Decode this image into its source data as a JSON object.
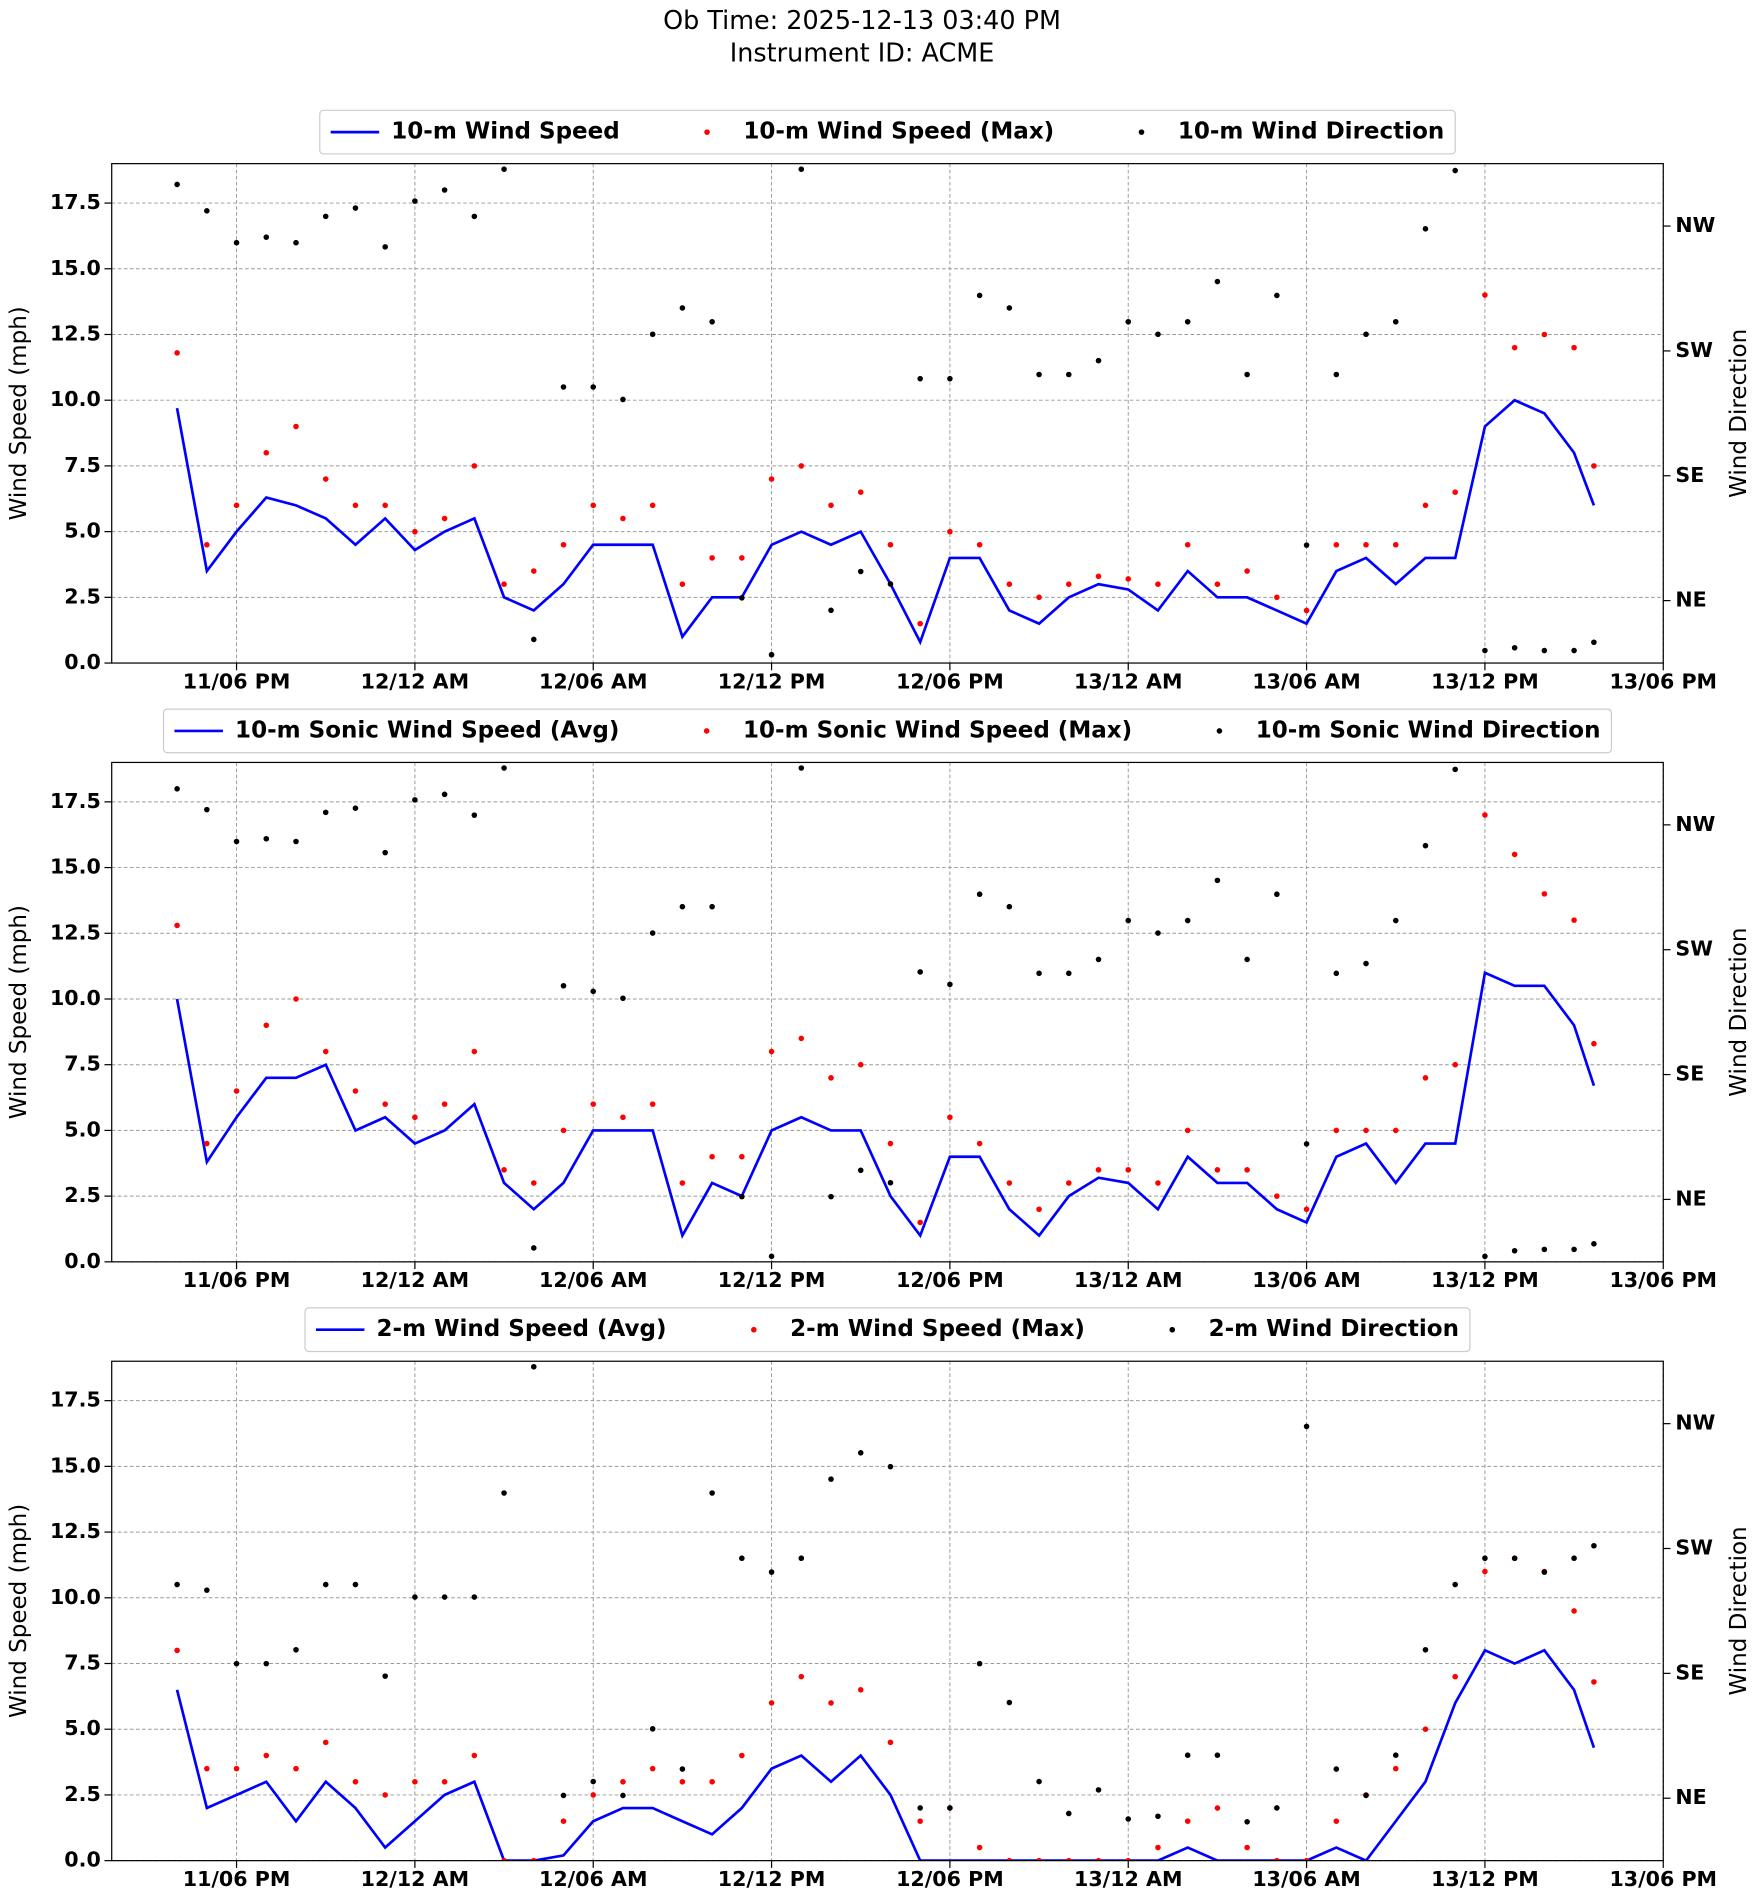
{
  "chart_data": [
    {
      "type": "line",
      "title": "Ob Time: 2025-12-13 03:40 PM",
      "subtitle": "Instrument ID: ACME",
      "y_label": "Wind Speed (mph)",
      "y2_label": "Wind Direction",
      "legend": "upper center",
      "grid": true,
      "x": [
        "11/04:00 PM",
        "11/05:00 PM",
        "11/06:00 PM",
        "11/07:00 PM",
        "11/08:00 PM",
        "11/09:00 PM",
        "11/10:00 PM",
        "11/11:00 PM",
        "12/12:00 AM",
        "12/01:00 AM",
        "12/02:00 AM",
        "12/03:00 AM",
        "12/04:00 AM",
        "12/05:00 AM",
        "12/06:00 AM",
        "12/07:00 AM",
        "12/08:00 AM",
        "12/09:00 AM",
        "12/10:00 AM",
        "12/11:00 AM",
        "12/12:00 PM",
        "12/01:00 PM",
        "12/02:00 PM",
        "12/03:00 PM",
        "12/04:00 PM",
        "12/05:00 PM",
        "12/06:00 PM",
        "12/07:00 PM",
        "12/08:00 PM",
        "12/09:00 PM",
        "12/10:00 PM",
        "12/11:00 PM",
        "13/12:00 AM",
        "13/01:00 AM",
        "13/02:00 AM",
        "13/03:00 AM",
        "13/04:00 AM",
        "13/05:00 AM",
        "13/06:00 AM",
        "13/07:00 AM",
        "13/08:00 AM",
        "13/09:00 AM",
        "13/10:00 AM",
        "13/11:00 AM",
        "13/12:00 PM",
        "13/01:00 PM",
        "13/02:00 PM",
        "13/03:00 PM",
        "13/03:40 PM"
      ],
      "xlim": [
        "11/01:48 PM",
        "13/06:00 PM"
      ],
      "xticks": [
        {
          "value": "11/06:00 PM",
          "label": "11/06 PM"
        },
        {
          "value": "12/12:00 AM",
          "label": "12/12 AM"
        },
        {
          "value": "12/06:00 AM",
          "label": "12/06 AM"
        },
        {
          "value": "12/12:00 PM",
          "label": "12/12 PM"
        },
        {
          "value": "12/06:00 PM",
          "label": "12/06 PM"
        },
        {
          "value": "13/12:00 AM",
          "label": "13/12 AM"
        },
        {
          "value": "13/06:00 AM",
          "label": "13/06 AM"
        },
        {
          "value": "13/12:00 PM",
          "label": "13/12 PM"
        },
        {
          "value": "13/06:00 PM",
          "label": "13/06 PM"
        }
      ],
      "ylim": [
        0,
        19
      ],
      "yticks": [
        {
          "value": 0,
          "label": "0.0"
        },
        2.5,
        {
          "value": 5,
          "label": "5.0"
        },
        7.5,
        {
          "value": 10,
          "label": "10.0"
        },
        12.5,
        {
          "value": 15,
          "label": "15.0"
        },
        17.5
      ],
      "y2lim": [
        0,
        360
      ],
      "y2ticks": [
        {
          "value": 45,
          "label": "NE"
        },
        {
          "value": 135,
          "label": "SE"
        },
        {
          "value": 225,
          "label": "SW"
        },
        {
          "value": 315,
          "label": "NW"
        }
      ],
      "series": [
        {
          "name": "10-m Wind Speed",
          "color": "#0000ff",
          "style": "line",
          "values": [
            9.7,
            3.5,
            5,
            6.3,
            6,
            5.5,
            4.5,
            5.5,
            4.3,
            5,
            5.5,
            2.5,
            2,
            3,
            4.5,
            4.5,
            4.5,
            1,
            2.5,
            2.5,
            4.5,
            5,
            4.5,
            5,
            3,
            0.8,
            4,
            4,
            2,
            1.5,
            2.5,
            3,
            2.8,
            2,
            3.5,
            2.5,
            2.5,
            2,
            1.5,
            3.5,
            4,
            3,
            4,
            4,
            9,
            10,
            9.5,
            8,
            6
          ]
        },
        {
          "name": "10-m Wind Speed (Max)",
          "color": "#ff0000",
          "style": "scatter",
          "values": [
            11.8,
            4.5,
            6,
            8,
            9,
            7,
            6,
            6,
            5,
            5.5,
            7.5,
            3,
            3.5,
            4.5,
            6,
            5.5,
            6,
            3,
            4,
            4,
            7,
            7.5,
            6,
            6.5,
            4.5,
            1.5,
            5,
            4.5,
            3,
            2.5,
            3,
            3.3,
            3.2,
            3,
            4.5,
            3,
            3.5,
            2.5,
            2,
            4.5,
            4.5,
            4.5,
            6,
            6.5,
            14,
            12,
            12.5,
            12,
            7.5
          ]
        },
        {
          "name": "10-m Wind Direction",
          "color": "#000000",
          "style": "scatter",
          "axis": "y2",
          "values": [
            345,
            326,
            303,
            307,
            303,
            322,
            328,
            300,
            333,
            341,
            322,
            356,
            17,
            199,
            199,
            190,
            237,
            256,
            246,
            47,
            6,
            356,
            38,
            66,
            57,
            205,
            205,
            265,
            256,
            208,
            208,
            218,
            246,
            237,
            246,
            275,
            208,
            265,
            85,
            208,
            237,
            246,
            313,
            355,
            9,
            11,
            9,
            9,
            15
          ]
        }
      ]
    },
    {
      "type": "line",
      "y_label": "Wind Speed (mph)",
      "y2_label": "Wind Direction",
      "legend": "upper center",
      "grid": true,
      "x": [
        "11/04:00 PM",
        "11/05:00 PM",
        "11/06:00 PM",
        "11/07:00 PM",
        "11/08:00 PM",
        "11/09:00 PM",
        "11/10:00 PM",
        "11/11:00 PM",
        "12/12:00 AM",
        "12/01:00 AM",
        "12/02:00 AM",
        "12/03:00 AM",
        "12/04:00 AM",
        "12/05:00 AM",
        "12/06:00 AM",
        "12/07:00 AM",
        "12/08:00 AM",
        "12/09:00 AM",
        "12/10:00 AM",
        "12/11:00 AM",
        "12/12:00 PM",
        "12/01:00 PM",
        "12/02:00 PM",
        "12/03:00 PM",
        "12/04:00 PM",
        "12/05:00 PM",
        "12/06:00 PM",
        "12/07:00 PM",
        "12/08:00 PM",
        "12/09:00 PM",
        "12/10:00 PM",
        "12/11:00 PM",
        "13/12:00 AM",
        "13/01:00 AM",
        "13/02:00 AM",
        "13/03:00 AM",
        "13/04:00 AM",
        "13/05:00 AM",
        "13/06:00 AM",
        "13/07:00 AM",
        "13/08:00 AM",
        "13/09:00 AM",
        "13/10:00 AM",
        "13/11:00 AM",
        "13/12:00 PM",
        "13/01:00 PM",
        "13/02:00 PM",
        "13/03:00 PM",
        "13/03:40 PM"
      ],
      "xlim": [
        "11/01:48 PM",
        "13/06:00 PM"
      ],
      "xticks": [
        {
          "value": "11/06:00 PM",
          "label": "11/06 PM"
        },
        {
          "value": "12/12:00 AM",
          "label": "12/12 AM"
        },
        {
          "value": "12/06:00 AM",
          "label": "12/06 AM"
        },
        {
          "value": "12/12:00 PM",
          "label": "12/12 PM"
        },
        {
          "value": "12/06:00 PM",
          "label": "12/06 PM"
        },
        {
          "value": "13/12:00 AM",
          "label": "13/12 AM"
        },
        {
          "value": "13/06:00 AM",
          "label": "13/06 AM"
        },
        {
          "value": "13/12:00 PM",
          "label": "13/12 PM"
        },
        {
          "value": "13/06:00 PM",
          "label": "13/06 PM"
        }
      ],
      "ylim": [
        0,
        19
      ],
      "yticks": [
        {
          "value": 0,
          "label": "0.0"
        },
        2.5,
        {
          "value": 5,
          "label": "5.0"
        },
        7.5,
        {
          "value": 10,
          "label": "10.0"
        },
        12.5,
        {
          "value": 15,
          "label": "15.0"
        },
        17.5
      ],
      "y2lim": [
        0,
        360
      ],
      "y2ticks": [
        {
          "value": 45,
          "label": "NE"
        },
        {
          "value": 135,
          "label": "SE"
        },
        {
          "value": 225,
          "label": "SW"
        },
        {
          "value": 315,
          "label": "NW"
        }
      ],
      "series": [
        {
          "name": "10-m Sonic Wind Speed (Avg)",
          "color": "#0000ff",
          "style": "line",
          "values": [
            10,
            3.8,
            5.5,
            7,
            7,
            7.5,
            5,
            5.5,
            4.5,
            5,
            6,
            3,
            2,
            3,
            5,
            5,
            5,
            1,
            3,
            2.5,
            5,
            5.5,
            5,
            5,
            2.5,
            1,
            4,
            4,
            2,
            1,
            2.5,
            3.2,
            3,
            2,
            4,
            3,
            3,
            2,
            1.5,
            4,
            4.5,
            3,
            4.5,
            4.5,
            11,
            10.5,
            10.5,
            9,
            6.7
          ]
        },
        {
          "name": "10-m Sonic Wind Speed (Max)",
          "color": "#ff0000",
          "style": "scatter",
          "values": [
            12.8,
            4.5,
            6.5,
            9,
            10,
            8,
            6.5,
            6,
            5.5,
            6,
            8,
            3.5,
            3,
            5,
            6,
            5.5,
            6,
            3,
            4,
            4,
            8,
            8.5,
            7,
            7.5,
            4.5,
            1.5,
            5.5,
            4.5,
            3,
            2,
            3,
            3.5,
            3.5,
            3,
            5,
            3.5,
            3.5,
            2.5,
            2,
            5,
            5,
            5,
            7,
            7.5,
            17,
            15.5,
            14,
            13,
            8.3
          ]
        },
        {
          "name": "10-m Sonic Wind Direction",
          "color": "#000000",
          "style": "scatter",
          "axis": "y2",
          "values": [
            341,
            326,
            303,
            305,
            303,
            324,
            327,
            295,
            333,
            337,
            322,
            356,
            10,
            199,
            195,
            190,
            237,
            256,
            256,
            47,
            4,
            356,
            47,
            66,
            57,
            209,
            200,
            265,
            256,
            208,
            208,
            218,
            246,
            237,
            246,
            275,
            218,
            265,
            85,
            208,
            215,
            246,
            300,
            355,
            4,
            8,
            9,
            9,
            13
          ]
        }
      ]
    },
    {
      "type": "line",
      "y_label": "Wind Speed (mph)",
      "y2_label": "Wind Direction",
      "legend": "upper center",
      "grid": true,
      "x": [
        "11/04:00 PM",
        "11/05:00 PM",
        "11/06:00 PM",
        "11/07:00 PM",
        "11/08:00 PM",
        "11/09:00 PM",
        "11/10:00 PM",
        "11/11:00 PM",
        "12/12:00 AM",
        "12/01:00 AM",
        "12/02:00 AM",
        "12/03:00 AM",
        "12/04:00 AM",
        "12/05:00 AM",
        "12/06:00 AM",
        "12/07:00 AM",
        "12/08:00 AM",
        "12/09:00 AM",
        "12/10:00 AM",
        "12/11:00 AM",
        "12/12:00 PM",
        "12/01:00 PM",
        "12/02:00 PM",
        "12/03:00 PM",
        "12/04:00 PM",
        "12/05:00 PM",
        "12/06:00 PM",
        "12/07:00 PM",
        "12/08:00 PM",
        "12/09:00 PM",
        "12/10:00 PM",
        "12/11:00 PM",
        "13/12:00 AM",
        "13/01:00 AM",
        "13/02:00 AM",
        "13/03:00 AM",
        "13/04:00 AM",
        "13/05:00 AM",
        "13/06:00 AM",
        "13/07:00 AM",
        "13/08:00 AM",
        "13/09:00 AM",
        "13/10:00 AM",
        "13/11:00 AM",
        "13/12:00 PM",
        "13/01:00 PM",
        "13/02:00 PM",
        "13/03:00 PM",
        "13/03:40 PM"
      ],
      "xlim": [
        "11/01:48 PM",
        "13/06:00 PM"
      ],
      "xticks": [
        {
          "value": "11/06:00 PM",
          "label": "11/06 PM"
        },
        {
          "value": "12/12:00 AM",
          "label": "12/12 AM"
        },
        {
          "value": "12/06:00 AM",
          "label": "12/06 AM"
        },
        {
          "value": "12/12:00 PM",
          "label": "12/12 PM"
        },
        {
          "value": "12/06:00 PM",
          "label": "12/06 PM"
        },
        {
          "value": "13/12:00 AM",
          "label": "13/12 AM"
        },
        {
          "value": "13/06:00 AM",
          "label": "13/06 AM"
        },
        {
          "value": "13/12:00 PM",
          "label": "13/12 PM"
        },
        {
          "value": "13/06:00 PM",
          "label": "13/06 PM"
        }
      ],
      "ylim": [
        0,
        19
      ],
      "yticks": [
        {
          "value": 0,
          "label": "0.0"
        },
        2.5,
        {
          "value": 5,
          "label": "5.0"
        },
        7.5,
        {
          "value": 10,
          "label": "10.0"
        },
        12.5,
        {
          "value": 15,
          "label": "15.0"
        },
        17.5
      ],
      "y2lim": [
        0,
        360
      ],
      "y2ticks": [
        {
          "value": 45,
          "label": "NE"
        },
        {
          "value": 135,
          "label": "SE"
        },
        {
          "value": 225,
          "label": "SW"
        },
        {
          "value": 315,
          "label": "NW"
        }
      ],
      "series": [
        {
          "name": "2-m Wind Speed (Avg)",
          "color": "#0000ff",
          "style": "line",
          "values": [
            6.5,
            2,
            2.5,
            3,
            1.5,
            3,
            2,
            0.5,
            1.5,
            2.5,
            3,
            0,
            0,
            0.2,
            1.5,
            2,
            2,
            1.5,
            1,
            2,
            3.5,
            4,
            3,
            4,
            2.5,
            0,
            0,
            0,
            0,
            0,
            0,
            0,
            0,
            0,
            0.5,
            0,
            0,
            0,
            0,
            0.5,
            0,
            1.5,
            3,
            6,
            8,
            7.5,
            8,
            6.5,
            4.3
          ]
        },
        {
          "name": "2-m Wind Speed (Max)",
          "color": "#ff0000",
          "style": "scatter",
          "values": [
            8,
            3.5,
            3.5,
            4,
            3.5,
            4.5,
            3,
            2.5,
            3,
            3,
            4,
            0,
            0,
            1.5,
            2.5,
            3,
            3.5,
            3,
            3,
            4,
            6,
            7,
            6,
            6.5,
            4.5,
            1.5,
            2,
            0.5,
            0,
            0,
            0,
            0,
            0,
            0.5,
            1.5,
            2,
            0.5,
            0,
            0,
            1.5,
            2.5,
            3.5,
            5,
            7,
            11,
            11.5,
            11,
            9.5,
            6.8
          ]
        },
        {
          "name": "2-m Wind Direction",
          "color": "#000000",
          "style": "scatter",
          "axis": "y2",
          "values": [
            199,
            195,
            142,
            142,
            152,
            199,
            199,
            133,
            190,
            190,
            190,
            265,
            356,
            47,
            57,
            47,
            95,
            66,
            265,
            218,
            208,
            218,
            275,
            294,
            284,
            38,
            38,
            142,
            114,
            57,
            34,
            51,
            30,
            32,
            76,
            76,
            28,
            38,
            313,
            66,
            47,
            76,
            152,
            199,
            218,
            218,
            208,
            218,
            227
          ]
        }
      ]
    }
  ]
}
